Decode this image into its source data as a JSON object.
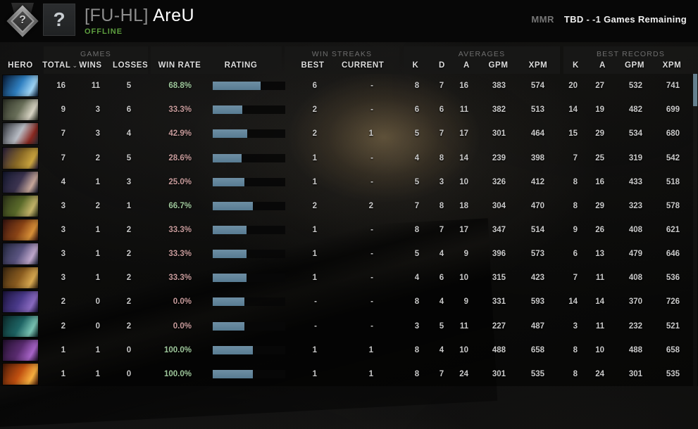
{
  "header": {
    "rank_medal_text": "?",
    "avatar_text": "?",
    "clan_tag": "[FU-HL]",
    "player_name": " AreU",
    "status": "OFFLINE",
    "mmr_label": "MMR",
    "mmr_value": "TBD - -1 Games Remaining"
  },
  "thead": {
    "groups": {
      "games": "GAMES",
      "win_streaks": "WIN STREAKS",
      "averages": "AVERAGES",
      "best_records": "BEST RECORDS"
    },
    "columns": {
      "hero": "HERO",
      "total": "TOTAL",
      "sort_caret": "⌄",
      "wins": "WINS",
      "losses": "LOSSES",
      "win_rate": "WIN RATE",
      "rating": "RATING",
      "best": "BEST",
      "current": "CURRENT",
      "k": "K",
      "d": "D",
      "a": "A",
      "gpm": "GPM",
      "xpm": "XPM",
      "best_k": "K",
      "best_a": "A",
      "best_gpm": "GPM",
      "best_xpm": "XPM"
    }
  },
  "colors": {
    "win_rate_positive": "#9ec79b",
    "win_rate_negative": "#c79b9b",
    "rating_bar_fill": "#5d8198",
    "offline_green": "#5d9e3f",
    "scroll_thumb": "#66808e"
  },
  "table_rows": [
    {
      "hero": "razor",
      "portrait": [
        "#081c38",
        "#2f7fc0",
        "#9fd4f5"
      ],
      "total": "16",
      "wins": "11",
      "losses": "5",
      "win_rate": "68.8%",
      "rating_fill": 0.66,
      "streak_best": "6",
      "streak_current": "-",
      "avg_k": "8",
      "avg_d": "7",
      "avg_a": "16",
      "avg_gpm": "383",
      "avg_xpm": "574",
      "best_k": "20",
      "best_a": "27",
      "best_gpm": "532",
      "best_xpm": "741"
    },
    {
      "hero": "sniper",
      "portrait": [
        "#2e3226",
        "#6a705a",
        "#d8d4c4"
      ],
      "total": "9",
      "wins": "3",
      "losses": "6",
      "win_rate": "33.3%",
      "rating_fill": 0.41,
      "streak_best": "2",
      "streak_current": "-",
      "avg_k": "6",
      "avg_d": "6",
      "avg_a": "11",
      "avg_gpm": "382",
      "avg_xpm": "513",
      "best_k": "14",
      "best_a": "19",
      "best_gpm": "482",
      "best_xpm": "699"
    },
    {
      "hero": "tinker",
      "portrait": [
        "#31343c",
        "#b8bcc4",
        "#8a2820"
      ],
      "total": "7",
      "wins": "3",
      "losses": "4",
      "win_rate": "42.9%",
      "rating_fill": 0.48,
      "streak_best": "2",
      "streak_current": "1",
      "avg_k": "5",
      "avg_d": "7",
      "avg_a": "17",
      "avg_gpm": "301",
      "avg_xpm": "464",
      "best_k": "15",
      "best_a": "29",
      "best_gpm": "534",
      "best_xpm": "680"
    },
    {
      "hero": "oracle",
      "portrait": [
        "#2a1f3d",
        "#8a6a26",
        "#caa43e"
      ],
      "total": "7",
      "wins": "2",
      "losses": "5",
      "win_rate": "28.6%",
      "rating_fill": 0.4,
      "streak_best": "1",
      "streak_current": "-",
      "avg_k": "4",
      "avg_d": "8",
      "avg_a": "14",
      "avg_gpm": "239",
      "avg_xpm": "398",
      "best_k": "7",
      "best_a": "25",
      "best_gpm": "319",
      "best_xpm": "542"
    },
    {
      "hero": "mirana",
      "portrait": [
        "#141830",
        "#3c3450",
        "#c8a89c"
      ],
      "total": "4",
      "wins": "1",
      "losses": "3",
      "win_rate": "25.0%",
      "rating_fill": 0.44,
      "streak_best": "1",
      "streak_current": "-",
      "avg_k": "5",
      "avg_d": "3",
      "avg_a": "10",
      "avg_gpm": "326",
      "avg_xpm": "412",
      "best_k": "8",
      "best_a": "16",
      "best_gpm": "433",
      "best_xpm": "518"
    },
    {
      "hero": "alchemist",
      "portrait": [
        "#2c3318",
        "#5a6a2a",
        "#c4b46a"
      ],
      "total": "3",
      "wins": "2",
      "losses": "1",
      "win_rate": "66.7%",
      "rating_fill": 0.55,
      "streak_best": "2",
      "streak_current": "2",
      "avg_k": "7",
      "avg_d": "8",
      "avg_a": "18",
      "avg_gpm": "304",
      "avg_xpm": "470",
      "best_k": "8",
      "best_a": "29",
      "best_gpm": "323",
      "best_xpm": "578"
    },
    {
      "hero": "legion-commander",
      "portrait": [
        "#3a1410",
        "#8a4416",
        "#d89038"
      ],
      "total": "3",
      "wins": "1",
      "losses": "2",
      "win_rate": "33.3%",
      "rating_fill": 0.47,
      "streak_best": "1",
      "streak_current": "-",
      "avg_k": "8",
      "avg_d": "7",
      "avg_a": "17",
      "avg_gpm": "347",
      "avg_xpm": "514",
      "best_k": "9",
      "best_a": "26",
      "best_gpm": "408",
      "best_xpm": "621"
    },
    {
      "hero": "drow-ranger",
      "portrait": [
        "#232840",
        "#5a5480",
        "#c0a8cc"
      ],
      "total": "3",
      "wins": "1",
      "losses": "2",
      "win_rate": "33.3%",
      "rating_fill": 0.47,
      "streak_best": "1",
      "streak_current": "-",
      "avg_k": "5",
      "avg_d": "4",
      "avg_a": "9",
      "avg_gpm": "396",
      "avg_xpm": "573",
      "best_k": "6",
      "best_a": "13",
      "best_gpm": "479",
      "best_xpm": "646"
    },
    {
      "hero": "techies",
      "portrait": [
        "#3c2810",
        "#8a5c20",
        "#d8a850"
      ],
      "total": "3",
      "wins": "1",
      "losses": "2",
      "win_rate": "33.3%",
      "rating_fill": 0.47,
      "streak_best": "1",
      "streak_current": "-",
      "avg_k": "4",
      "avg_d": "6",
      "avg_a": "10",
      "avg_gpm": "315",
      "avg_xpm": "423",
      "best_k": "7",
      "best_a": "11",
      "best_gpm": "408",
      "best_xpm": "536"
    },
    {
      "hero": "riki",
      "portrait": [
        "#1c1440",
        "#4a3a8a",
        "#8a6ac0"
      ],
      "total": "2",
      "wins": "0",
      "losses": "2",
      "win_rate": "0.0%",
      "rating_fill": 0.44,
      "streak_best": "-",
      "streak_current": "-",
      "avg_k": "8",
      "avg_d": "4",
      "avg_a": "9",
      "avg_gpm": "331",
      "avg_xpm": "593",
      "best_k": "14",
      "best_a": "14",
      "best_gpm": "370",
      "best_xpm": "726"
    },
    {
      "hero": "tidehunter",
      "portrait": [
        "#0c2c2c",
        "#1e6464",
        "#7ac4b4"
      ],
      "total": "2",
      "wins": "0",
      "losses": "2",
      "win_rate": "0.0%",
      "rating_fill": 0.44,
      "streak_best": "-",
      "streak_current": "-",
      "avg_k": "3",
      "avg_d": "5",
      "avg_a": "11",
      "avg_gpm": "227",
      "avg_xpm": "487",
      "best_k": "3",
      "best_a": "11",
      "best_gpm": "232",
      "best_xpm": "521"
    },
    {
      "hero": "slardar",
      "portrait": [
        "#241030",
        "#5a2c70",
        "#a864c8"
      ],
      "total": "1",
      "wins": "1",
      "losses": "0",
      "win_rate": "100.0%",
      "rating_fill": 0.55,
      "streak_best": "1",
      "streak_current": "1",
      "avg_k": "8",
      "avg_d": "4",
      "avg_a": "10",
      "avg_gpm": "488",
      "avg_xpm": "658",
      "best_k": "8",
      "best_a": "10",
      "best_gpm": "488",
      "best_xpm": "658"
    },
    {
      "hero": "phoenix",
      "portrait": [
        "#501c08",
        "#c05010",
        "#f8b040"
      ],
      "total": "1",
      "wins": "1",
      "losses": "0",
      "win_rate": "100.0%",
      "rating_fill": 0.55,
      "streak_best": "1",
      "streak_current": "1",
      "avg_k": "8",
      "avg_d": "7",
      "avg_a": "24",
      "avg_gpm": "301",
      "avg_xpm": "535",
      "best_k": "8",
      "best_a": "24",
      "best_gpm": "301",
      "best_xpm": "535"
    }
  ]
}
